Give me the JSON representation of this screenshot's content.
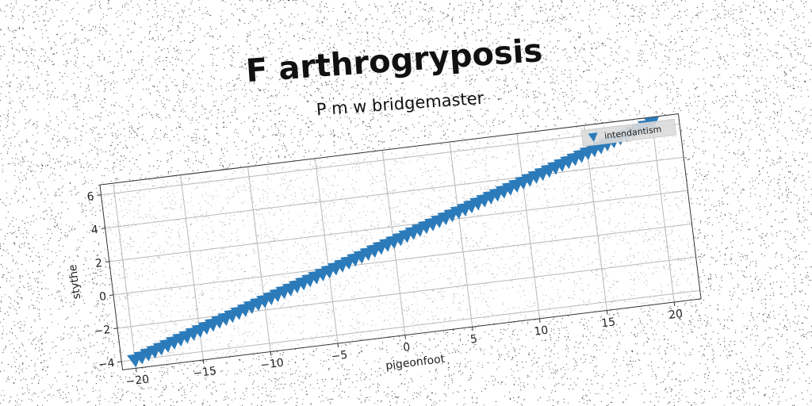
{
  "chart_data": {
    "type": "scatter",
    "title": "F arthrogryposis",
    "subtitle": "P m w bridgemaster",
    "xlabel": "pigeonfoot",
    "ylabel": "stythe",
    "xlim": [
      -21,
      22
    ],
    "ylim": [
      -4.5,
      6.6
    ],
    "xticks": [
      -20,
      -15,
      -10,
      -5,
      0,
      5,
      10,
      15,
      20
    ],
    "xtick_labels": [
      "−20",
      "−15",
      "−10",
      "−5",
      "0",
      "5",
      "10",
      "15",
      "20"
    ],
    "yticks": [
      -4,
      -2,
      0,
      2,
      4,
      6
    ],
    "ytick_labels": [
      "−4",
      "−2",
      "0",
      "2",
      "4",
      "6"
    ],
    "grid": true,
    "legend_position": "top-right",
    "marker": "triangle-down",
    "color": "#2b7bba",
    "series": [
      {
        "name": "intendantism",
        "x": [
          -20,
          -19.5,
          -19,
          -18.5,
          -18,
          -17.5,
          -17,
          -16.5,
          -16,
          -15.5,
          -15,
          -14.5,
          -14,
          -13.5,
          -13,
          -12.5,
          -12,
          -11.5,
          -11,
          -10.5,
          -10,
          -9.5,
          -9,
          -8.5,
          -8,
          -7.5,
          -7,
          -6.5,
          -6,
          -5.5,
          -5,
          -4.5,
          -4,
          -3.5,
          -3,
          -2.5,
          -2,
          -1.5,
          -1,
          -0.5,
          0,
          0.5,
          1,
          1.5,
          2,
          2.5,
          3,
          3.5,
          4,
          4.5,
          5,
          5.5,
          6,
          6.5,
          7,
          7.5,
          8,
          8.5,
          9,
          9.5,
          10,
          10.5,
          11,
          11.5,
          12,
          12.5,
          13,
          13.5,
          14,
          14.5,
          15,
          15.5,
          16,
          16.5,
          17,
          17.5,
          18,
          18.5,
          19,
          19.5,
          20
        ],
        "y": [
          -4,
          -3.87,
          -3.74,
          -3.62,
          -3.49,
          -3.36,
          -3.23,
          -3.1,
          -2.98,
          -2.85,
          -2.72,
          -2.59,
          -2.46,
          -2.33,
          -2.21,
          -2.08,
          -1.95,
          -1.82,
          -1.69,
          -1.57,
          -1.44,
          -1.31,
          -1.18,
          -1.05,
          -0.93,
          -0.8,
          -0.67,
          -0.54,
          -0.41,
          -0.28,
          -0.16,
          -0.03,
          0.1,
          0.23,
          0.36,
          0.48,
          0.61,
          0.74,
          0.87,
          1.0,
          1.12,
          1.25,
          1.38,
          1.51,
          1.64,
          1.77,
          1.89,
          2.02,
          2.15,
          2.28,
          2.41,
          2.53,
          2.66,
          2.79,
          2.92,
          3.05,
          3.17,
          3.3,
          3.43,
          3.56,
          3.69,
          3.82,
          3.94,
          4.07,
          4.2,
          4.33,
          4.46,
          4.58,
          4.71,
          4.84,
          4.97,
          5.1,
          5.22,
          5.35,
          5.48,
          5.61,
          5.74,
          5.87,
          5.99,
          6.12,
          6.25
        ]
      }
    ]
  }
}
